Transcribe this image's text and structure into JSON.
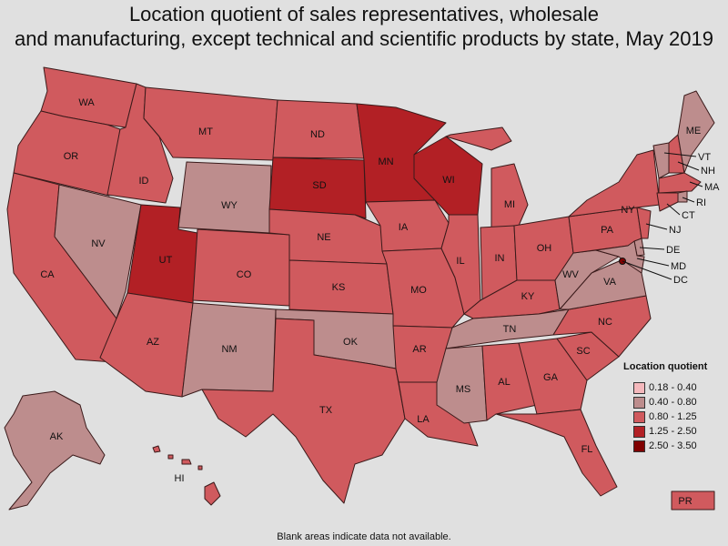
{
  "title": {
    "line1": "Location quotient of sales representatives, wholesale",
    "line2": "and manufacturing, except technical and scientific products by state, May 2019"
  },
  "legend": {
    "title": "Location quotient",
    "items": [
      {
        "label": "0.18 - 0.40",
        "color": "#f4b8bc"
      },
      {
        "label": "0.40 - 0.80",
        "color": "#bd8d8d"
      },
      {
        "label": "0.80 - 1.25",
        "color": "#d05a5e"
      },
      {
        "label": "1.25 - 2.50",
        "color": "#b22025"
      },
      {
        "label": "2.50 - 3.50",
        "color": "#800000"
      }
    ]
  },
  "footnote": "Blank areas indicate data not available.",
  "states": {
    "WA": {
      "label": "WA",
      "bin": 2
    },
    "OR": {
      "label": "OR",
      "bin": 2
    },
    "CA": {
      "label": "CA",
      "bin": 2
    },
    "ID": {
      "label": "ID",
      "bin": 2
    },
    "NV": {
      "label": "NV",
      "bin": 1
    },
    "MT": {
      "label": "MT",
      "bin": 2
    },
    "WY": {
      "label": "WY",
      "bin": 1
    },
    "UT": {
      "label": "UT",
      "bin": 3
    },
    "AZ": {
      "label": "AZ",
      "bin": 2
    },
    "CO": {
      "label": "CO",
      "bin": 2
    },
    "NM": {
      "label": "NM",
      "bin": 1
    },
    "ND": {
      "label": "ND",
      "bin": 2
    },
    "SD": {
      "label": "SD",
      "bin": 3
    },
    "NE": {
      "label": "NE",
      "bin": 2
    },
    "KS": {
      "label": "KS",
      "bin": 2
    },
    "OK": {
      "label": "OK",
      "bin": 1
    },
    "TX": {
      "label": "TX",
      "bin": 2
    },
    "MN": {
      "label": "MN",
      "bin": 3
    },
    "IA": {
      "label": "IA",
      "bin": 2
    },
    "MO": {
      "label": "MO",
      "bin": 2
    },
    "AR": {
      "label": "AR",
      "bin": 2
    },
    "LA": {
      "label": "LA",
      "bin": 2
    },
    "WI": {
      "label": "WI",
      "bin": 3
    },
    "IL": {
      "label": "IL",
      "bin": 2
    },
    "MI": {
      "label": "MI",
      "bin": 2
    },
    "IN": {
      "label": "IN",
      "bin": 2
    },
    "OH": {
      "label": "OH",
      "bin": 2
    },
    "KY": {
      "label": "KY",
      "bin": 2
    },
    "TN": {
      "label": "TN",
      "bin": 1
    },
    "MS": {
      "label": "MS",
      "bin": 1
    },
    "AL": {
      "label": "AL",
      "bin": 2
    },
    "GA": {
      "label": "GA",
      "bin": 2
    },
    "FL": {
      "label": "FL",
      "bin": 2
    },
    "SC": {
      "label": "SC",
      "bin": 2
    },
    "NC": {
      "label": "NC",
      "bin": 2
    },
    "VA": {
      "label": "VA",
      "bin": 1
    },
    "WV": {
      "label": "WV",
      "bin": 1
    },
    "PA": {
      "label": "PA",
      "bin": 2
    },
    "NY": {
      "label": "NY",
      "bin": 2
    },
    "ME": {
      "label": "ME",
      "bin": 1
    },
    "VT": {
      "label": "VT",
      "bin": 1
    },
    "NH": {
      "label": "NH",
      "bin": 2
    },
    "MA": {
      "label": "MA",
      "bin": 2
    },
    "RI": {
      "label": "RI",
      "bin": 1
    },
    "CT": {
      "label": "CT",
      "bin": 2
    },
    "NJ": {
      "label": "NJ",
      "bin": 2
    },
    "DE": {
      "label": "DE",
      "bin": 1
    },
    "MD": {
      "label": "MD",
      "bin": 1
    },
    "DC": {
      "label": "DC",
      "bin": 4
    },
    "AK": {
      "label": "AK",
      "bin": 1
    },
    "HI": {
      "label": "HI",
      "bin": 2
    },
    "PR": {
      "label": "PR",
      "bin": 2
    }
  }
}
